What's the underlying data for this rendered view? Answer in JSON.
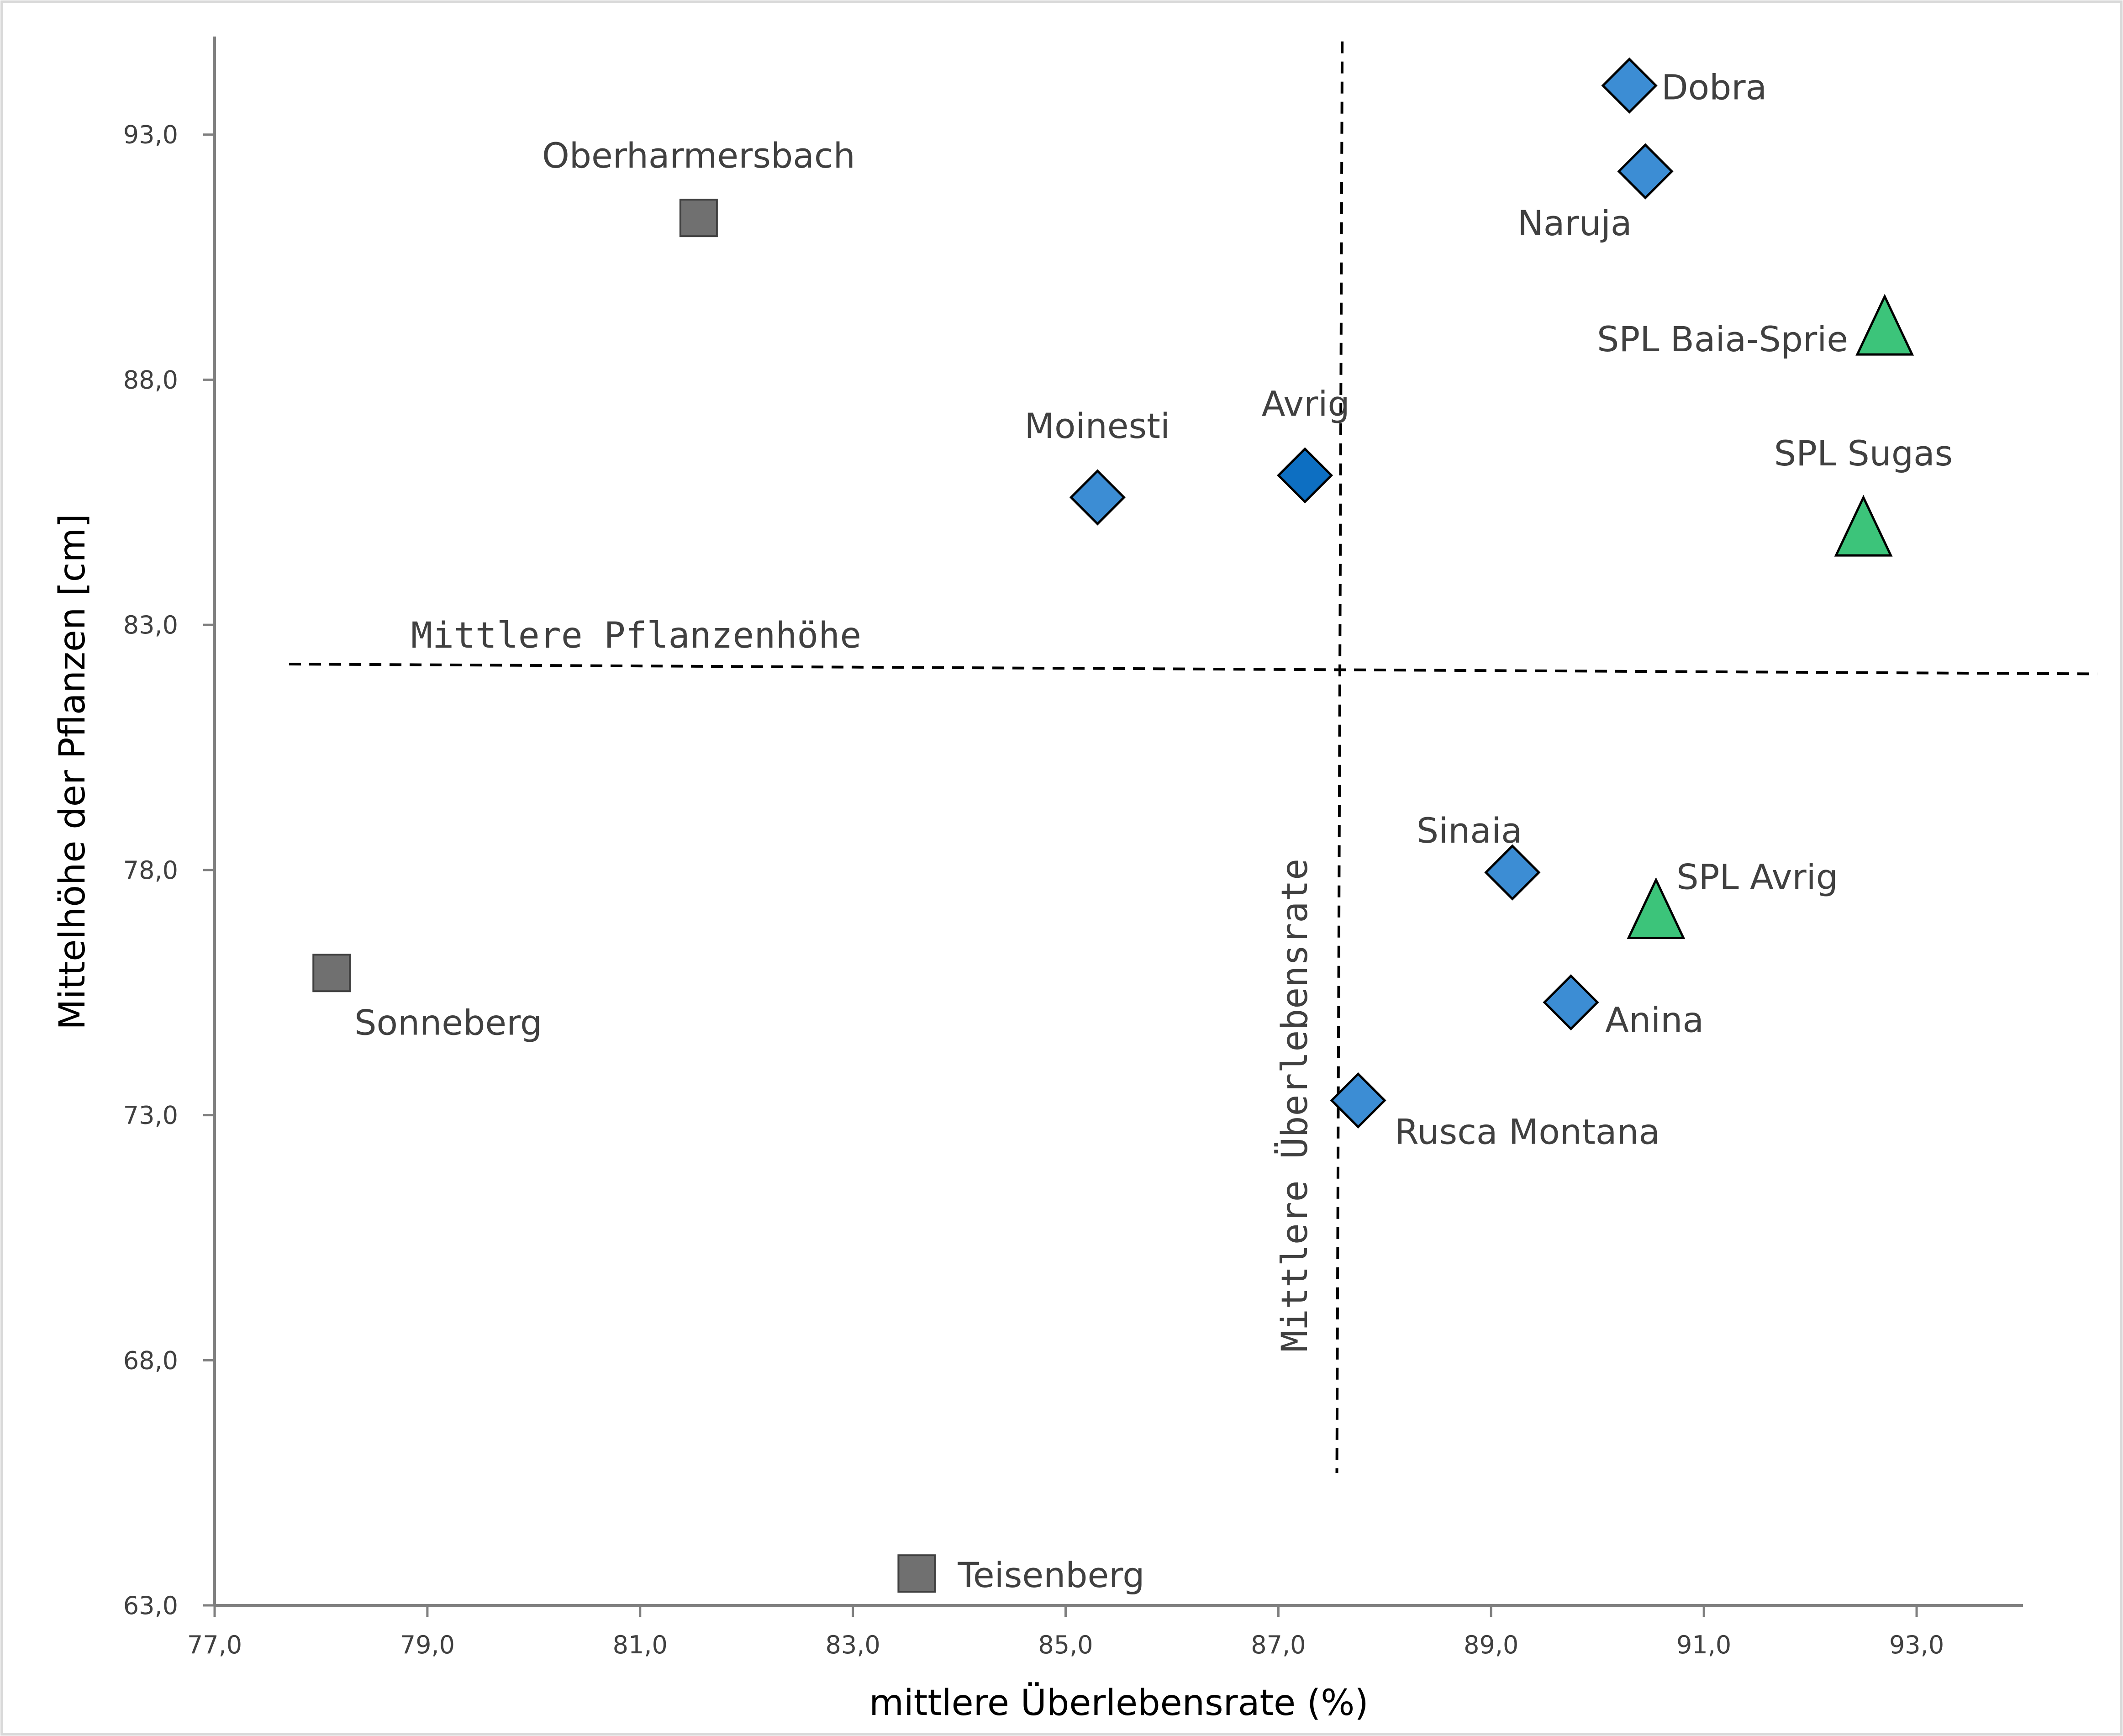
{
  "chart_data": {
    "type": "scatter",
    "title": "",
    "xlabel": "mittlere Überlebensrate (%)",
    "ylabel": "Mittelhöhe der Pflanzen [cm]",
    "xlim": [
      77.0,
      94.0
    ],
    "ylim": [
      63.0,
      95.0
    ],
    "x_ticks": [
      77.0,
      79.0,
      81.0,
      83.0,
      85.0,
      87.0,
      89.0,
      91.0,
      93.0
    ],
    "x_tick_labels": [
      "77,0",
      "79,0",
      "81,0",
      "83,0",
      "85,0",
      "87,0",
      "89,0",
      "91,0",
      "93,0"
    ],
    "y_ticks": [
      63.0,
      68.0,
      73.0,
      78.0,
      83.0,
      88.0,
      93.0
    ],
    "y_tick_labels": [
      "63,0",
      "68,0",
      "73,0",
      "78,0",
      "83,0",
      "88,0",
      "93,0"
    ],
    "grid": false,
    "colors": {
      "diamond": "#3c8dd4",
      "diamond_dark": "#0d6fc2",
      "square": "#707070",
      "triangle": "#3cc47a",
      "axis": "#7f7f7f",
      "ref_line": "#000000"
    },
    "series": [
      {
        "name": "diamond",
        "points": [
          {
            "label": "Dobra",
            "x": 90.3,
            "y": 94.0
          },
          {
            "label": "Naruja",
            "x": 90.45,
            "y": 92.25
          },
          {
            "label": "Moinesti",
            "x": 85.3,
            "y": 85.6
          },
          {
            "label": "Avrig",
            "x": 87.25,
            "y": 86.05
          },
          {
            "label": "Sinaia",
            "x": 89.2,
            "y": 77.95
          },
          {
            "label": "Anina",
            "x": 89.75,
            "y": 75.3
          },
          {
            "label": "Rusca Montana",
            "x": 87.75,
            "y": 73.3
          }
        ]
      },
      {
        "name": "square",
        "points": [
          {
            "label": "Oberharmersbach",
            "x": 81.55,
            "y": 91.3
          },
          {
            "label": "Sonneberg",
            "x": 78.1,
            "y": 75.9
          },
          {
            "label": "Teisenberg",
            "x": 83.6,
            "y": 63.65
          }
        ]
      },
      {
        "name": "triangle",
        "points": [
          {
            "label": "SPL Baia-Sprie",
            "x": 92.7,
            "y": 89.0
          },
          {
            "label": "SPL Sugas",
            "x": 92.5,
            "y": 84.9
          },
          {
            "label": "SPL Avrig",
            "x": 90.55,
            "y": 77.1
          }
        ]
      }
    ],
    "reference_lines": [
      {
        "label": "Mittlere Pflanzenhöhe",
        "orientation": "horizontal",
        "from": [
          77.7,
          82.2
        ],
        "to": [
          94.7,
          82.0
        ]
      },
      {
        "label": "Mittlere Überlebensrate",
        "orientation": "vertical",
        "from": [
          87.6,
          94.9
        ],
        "to": [
          87.55,
          65.7
        ]
      }
    ]
  }
}
